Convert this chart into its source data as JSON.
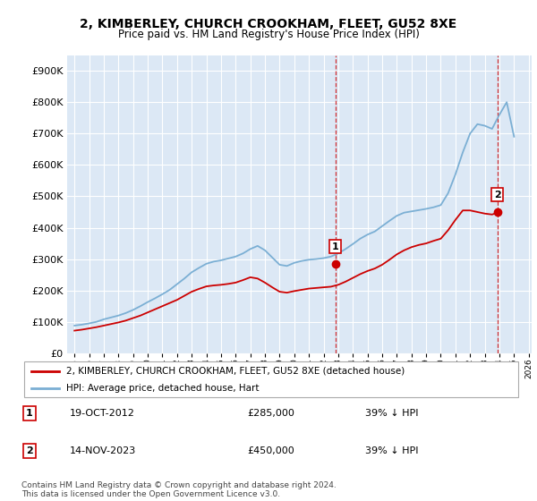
{
  "title": "2, KIMBERLEY, CHURCH CROOKHAM, FLEET, GU52 8XE",
  "subtitle": "Price paid vs. HM Land Registry's House Price Index (HPI)",
  "legend_line1": "2, KIMBERLEY, CHURCH CROOKHAM, FLEET, GU52 8XE (detached house)",
  "legend_line2": "HPI: Average price, detached house, Hart",
  "transaction1_label": "1",
  "transaction1_date": "19-OCT-2012",
  "transaction1_price": "£285,000",
  "transaction1_hpi": "39% ↓ HPI",
  "transaction2_label": "2",
  "transaction2_date": "14-NOV-2023",
  "transaction2_price": "£450,000",
  "transaction2_hpi": "39% ↓ HPI",
  "footer": "Contains HM Land Registry data © Crown copyright and database right 2024.\nThis data is licensed under the Open Government Licence v3.0.",
  "red_color": "#cc0000",
  "blue_color": "#7bafd4",
  "background_color": "#ffffff",
  "chart_bg": "#dce8f5",
  "grid_color": "#ffffff",
  "ylim": [
    0,
    950000
  ],
  "yticks": [
    0,
    100000,
    200000,
    300000,
    400000,
    500000,
    600000,
    700000,
    800000,
    900000
  ],
  "ytick_labels": [
    "£0",
    "£100K",
    "£200K",
    "£300K",
    "£400K",
    "£500K",
    "£600K",
    "£700K",
    "£800K",
    "£900K"
  ],
  "hpi_years": [
    1995,
    1995.5,
    1996,
    1996.5,
    1997,
    1997.5,
    1998,
    1998.5,
    1999,
    1999.5,
    2000,
    2000.5,
    2001,
    2001.5,
    2002,
    2002.5,
    2003,
    2003.5,
    2004,
    2004.5,
    2005,
    2005.5,
    2006,
    2006.5,
    2007,
    2007.5,
    2008,
    2008.5,
    2009,
    2009.5,
    2010,
    2010.5,
    2011,
    2011.5,
    2012,
    2012.5,
    2013,
    2013.5,
    2014,
    2014.5,
    2015,
    2015.5,
    2016,
    2016.5,
    2017,
    2017.5,
    2018,
    2018.5,
    2019,
    2019.5,
    2020,
    2020.5,
    2021,
    2021.5,
    2022,
    2022.5,
    2023,
    2023.5,
    2024,
    2024.5,
    2025
  ],
  "hpi_values": [
    88000,
    91000,
    95000,
    100000,
    108000,
    114000,
    120000,
    128000,
    138000,
    150000,
    163000,
    175000,
    188000,
    202000,
    220000,
    238000,
    258000,
    272000,
    285000,
    292000,
    296000,
    302000,
    308000,
    318000,
    332000,
    342000,
    328000,
    305000,
    282000,
    278000,
    288000,
    294000,
    298000,
    300000,
    303000,
    308000,
    318000,
    332000,
    348000,
    365000,
    378000,
    388000,
    405000,
    422000,
    438000,
    448000,
    452000,
    456000,
    460000,
    465000,
    472000,
    510000,
    570000,
    640000,
    700000,
    730000,
    725000,
    715000,
    760000,
    800000,
    690000
  ],
  "red_years": [
    1995,
    1995.5,
    1996,
    1996.5,
    1997,
    1997.5,
    1998,
    1998.5,
    1999,
    1999.5,
    2000,
    2000.5,
    2001,
    2001.5,
    2002,
    2002.5,
    2003,
    2003.5,
    2004,
    2004.5,
    2005,
    2005.5,
    2006,
    2006.5,
    2007,
    2007.5,
    2008,
    2008.5,
    2009,
    2009.5,
    2010,
    2010.5,
    2011,
    2011.5,
    2012,
    2012.5,
    2013,
    2013.5,
    2014,
    2014.5,
    2015,
    2015.5,
    2016,
    2016.5,
    2017,
    2017.5,
    2018,
    2018.5,
    2019,
    2019.5,
    2020,
    2020.5,
    2021,
    2021.5,
    2022,
    2022.5,
    2023,
    2023.5,
    2024
  ],
  "red_values": [
    72000,
    75000,
    79000,
    83000,
    88000,
    93000,
    98000,
    104000,
    112000,
    120000,
    130000,
    140000,
    150000,
    160000,
    170000,
    183000,
    196000,
    205000,
    213000,
    216000,
    218000,
    221000,
    225000,
    233000,
    242000,
    238000,
    225000,
    210000,
    196000,
    193000,
    198000,
    202000,
    206000,
    208000,
    210000,
    212000,
    218000,
    228000,
    240000,
    252000,
    262000,
    270000,
    282000,
    298000,
    315000,
    328000,
    338000,
    345000,
    350000,
    358000,
    365000,
    392000,
    425000,
    455000,
    455000,
    450000,
    445000,
    442000,
    450000
  ],
  "marker1_year": 2012.8,
  "marker1_value": 285000,
  "marker2_year": 2023.85,
  "marker2_value": 450000,
  "vline1_year": 2012.8,
  "vline2_year": 2023.85,
  "xlim_left": 1994.5,
  "xlim_right": 2026.2
}
